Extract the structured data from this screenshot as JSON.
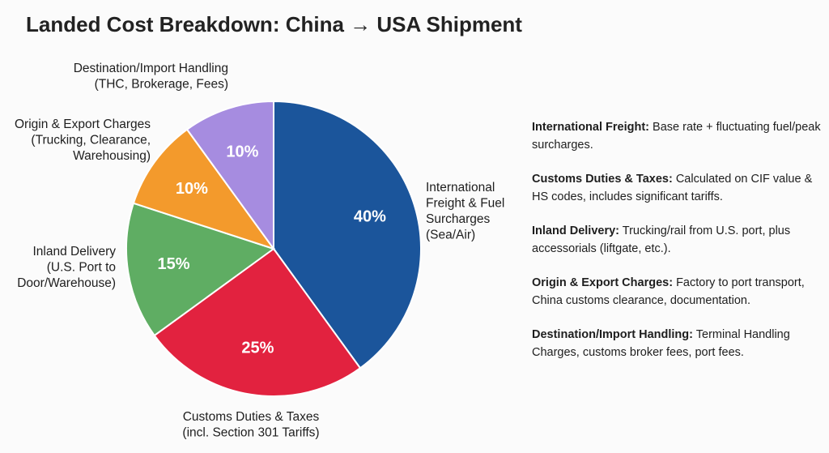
{
  "chart_data": {
    "type": "pie",
    "title": "Landed Cost Breakdown: China → USA Shipment",
    "categories": [
      "International\nFreight & Fuel\nSurcharges\n(Sea/Air)",
      "Customs Duties & Taxes\n(incl. Section 301 Tariffs)",
      "Inland Delivery\n(U.S. Port to\nDoor/Warehouse)",
      "Origin & Export Charges\n(Trucking, Clearance,\nWarehousing)",
      "Destination/Import Handling\n(THC, Brokerage, Fees)"
    ],
    "values": [
      40,
      25,
      15,
      10,
      10
    ],
    "value_labels": [
      "40%",
      "25%",
      "15%",
      "10%",
      "10%"
    ],
    "colors": [
      "#1b559b",
      "#e2223f",
      "#5fad63",
      "#f39a2c",
      "#a68ce0"
    ],
    "notes": [
      {
        "term": "International Freight:",
        "text": "Base rate + fluctuating fuel/peak surcharges."
      },
      {
        "term": "Customs Duties & Taxes:",
        "text": "Calculated on CIF value & HS codes, includes significant tariffs."
      },
      {
        "term": "Inland Delivery:",
        "text": "Trucking/rail from U.S. port, plus accessorials (liftgate, etc.)."
      },
      {
        "term": "Origin & Export Charges:",
        "text": "Factory to port transport, China customs clearance, documentation."
      },
      {
        "term": "Destination/Import Handling:",
        "text": "Terminal Handling Charges, customs broker fees, port fees."
      }
    ]
  }
}
